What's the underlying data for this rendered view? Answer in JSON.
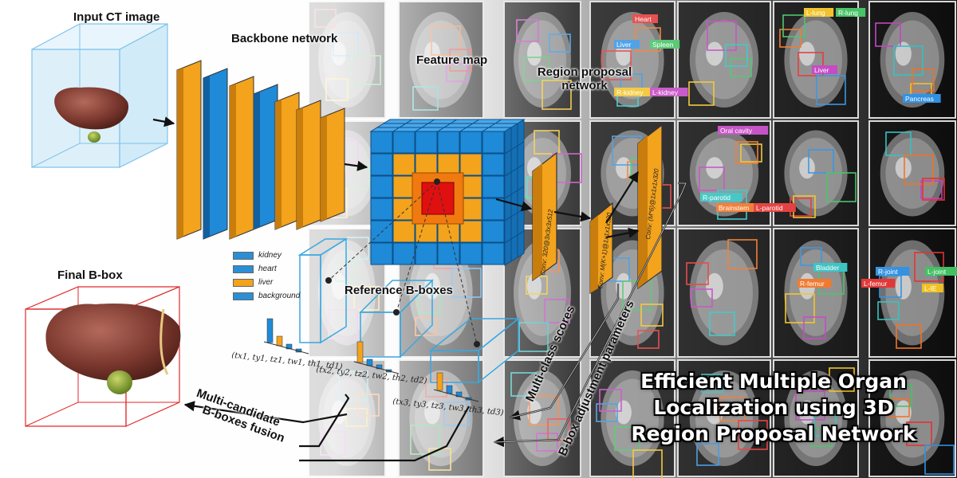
{
  "labels": {
    "input_ct": "Input CT image",
    "backbone": "Backbone network",
    "feature_map": "Feature map",
    "rpn": [
      "Region proposal",
      "network"
    ],
    "final_bbox": "Final B-box",
    "reference_bboxes": "Reference B-boxes",
    "fusion": [
      "Multi-candidate",
      "B-boxes fusion"
    ],
    "multiclass": "Multi-class scores",
    "bbox_params": "B-box adjustment parameters"
  },
  "conv_labels": [
    "Conv: 320@3x3x3x512",
    "Conv: M(K+1)@1x1x1x320",
    "Conv: (M*6)@1x1x1x320"
  ],
  "legend": [
    {
      "label": "kidney",
      "color": "#2b8fd6"
    },
    {
      "label": "heart",
      "color": "#2b8fd6"
    },
    {
      "label": "liver",
      "color": "#f3a31c"
    },
    {
      "label": "background",
      "color": "#2b8fd6"
    }
  ],
  "formulas": [
    "(tx1, ty1, tz1, tw1, th1, td1)",
    "(tx2, ty2, tz2, tw2, th2, td2)",
    "(tx3, ty3, tz3, tw3, th3, td3)"
  ],
  "title": [
    "Efficient Multiple Organ",
    "Localization using 3D",
    "Region Proposal Network"
  ],
  "organ_labels": [
    "Heart",
    "Liver",
    "Spleen",
    "R-kidney",
    "L-kidney",
    "Bladder",
    "R-femur",
    "L-femur",
    "Pancreas",
    "R-lung",
    "L-lung",
    "Oral cavity",
    "R-parotid",
    "Brainstem",
    "L-parotid",
    "R-joint",
    "L-joint",
    "L-IE",
    "Liver"
  ],
  "colors": {
    "orange": "#f3a31c",
    "blue": "#1e8ad8",
    "red": "#e01010",
    "cyan_box": "#3aa7e0",
    "final_box": "#e02a2a",
    "input_box": "#7fc3ea"
  }
}
